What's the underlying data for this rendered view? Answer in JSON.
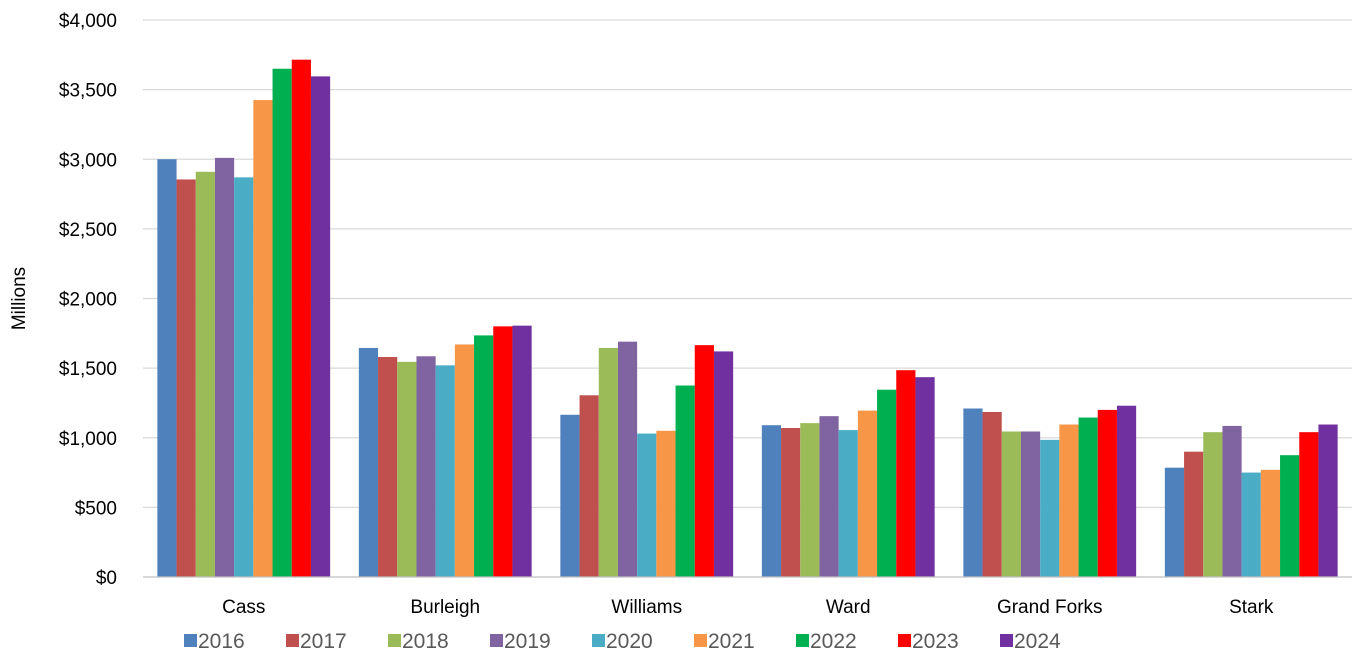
{
  "chart_data": {
    "type": "bar",
    "title": "",
    "xlabel": "",
    "ylabel": "Millions",
    "ylim": [
      0,
      4000
    ],
    "y_ticks": [
      0,
      500,
      1000,
      1500,
      2000,
      2500,
      3000,
      3500,
      4000
    ],
    "y_tick_labels": [
      "$0",
      "$500",
      "$1,000",
      "$1,500",
      "$2,000",
      "$2,500",
      "$3,000",
      "$3,500",
      "$4,000"
    ],
    "grid": true,
    "legend_position": "bottom",
    "categories": [
      "Cass",
      "Burleigh",
      "Williams",
      "Ward",
      "Grand Forks",
      "Stark"
    ],
    "series": [
      {
        "name": "2016",
        "color": "#4f81bd",
        "values": [
          3000,
          1645,
          1165,
          1090,
          1210,
          785
        ]
      },
      {
        "name": "2017",
        "color": "#c0504d",
        "values": [
          2855,
          1580,
          1305,
          1070,
          1185,
          900
        ]
      },
      {
        "name": "2018",
        "color": "#9bbb59",
        "values": [
          2910,
          1545,
          1645,
          1105,
          1045,
          1040
        ]
      },
      {
        "name": "2019",
        "color": "#8064a2",
        "values": [
          3010,
          1585,
          1690,
          1155,
          1045,
          1085
        ]
      },
      {
        "name": "2020",
        "color": "#4bacc6",
        "values": [
          2870,
          1520,
          1030,
          1055,
          985,
          750
        ]
      },
      {
        "name": "2021",
        "color": "#f79646",
        "values": [
          3425,
          1670,
          1050,
          1195,
          1095,
          770
        ]
      },
      {
        "name": "2022",
        "color": "#00b050",
        "values": [
          3650,
          1735,
          1375,
          1345,
          1145,
          875
        ]
      },
      {
        "name": "2023",
        "color": "#ff0000",
        "values": [
          3715,
          1800,
          1665,
          1485,
          1200,
          1040
        ]
      },
      {
        "name": "2024",
        "color": "#7030a0",
        "values": [
          3595,
          1805,
          1620,
          1435,
          1230,
          1095
        ]
      }
    ]
  }
}
